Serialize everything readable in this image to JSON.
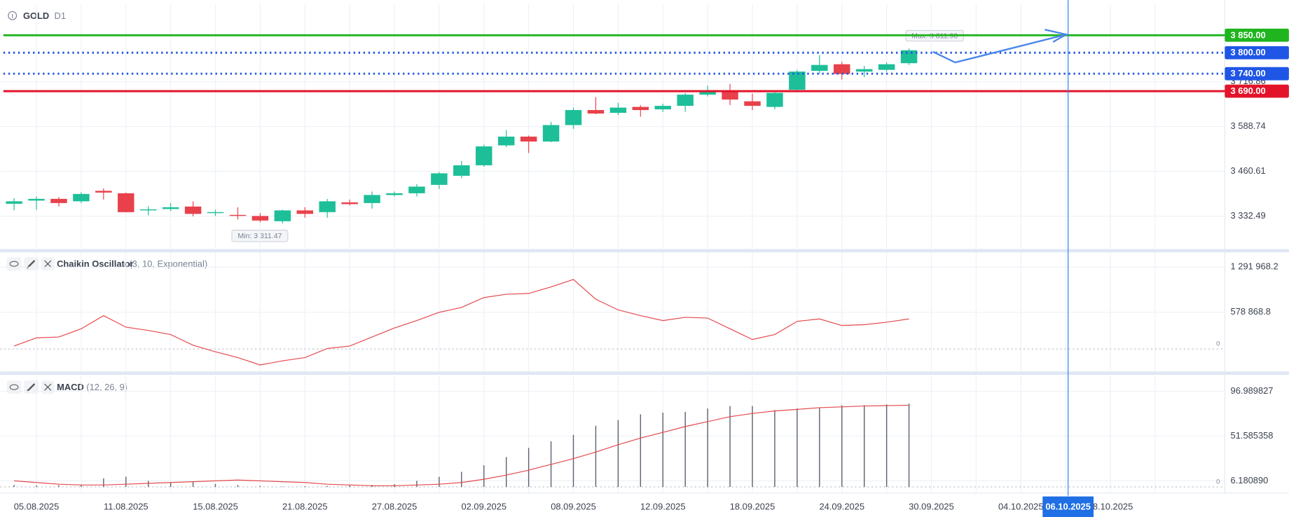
{
  "symbol": "GOLD",
  "timeframe": "D1",
  "chart_data": [
    {
      "type": "candlestick",
      "categories": [
        null,
        "05.08.2025",
        null,
        null,
        null,
        "11.08.2025",
        null,
        null,
        null,
        "15.08.2025",
        null,
        null,
        null,
        "21.08.2025",
        null,
        null,
        null,
        "27.08.2025",
        null,
        null,
        null,
        "02.09.2025",
        null,
        null,
        null,
        "08.09.2025",
        null,
        null,
        null,
        "12.09.2025",
        null,
        null,
        null,
        "18.09.2025",
        null,
        null,
        null,
        "24.09.2025",
        null,
        null,
        null,
        "30.09.2025",
        null,
        null,
        null,
        "04.10.2025",
        null,
        "06.10.2025",
        null,
        "08.10.2025",
        null,
        null,
        null
      ],
      "highlight_category": "06.10.2025",
      "open": [
        3368,
        3377,
        3382,
        3375,
        3405,
        3398,
        3349,
        3353,
        3360,
        3342,
        3336,
        3333,
        3318,
        3349,
        3344,
        3372,
        3370,
        3393,
        3398,
        3422,
        3448,
        3478,
        3535,
        3560,
        3546,
        3593,
        3636,
        3628,
        3645,
        3638,
        3648,
        3680,
        3689,
        3661,
        3645,
        3694,
        3748,
        3767,
        3746,
        3751,
        3770,
        null,
        null,
        null,
        null,
        null,
        null,
        null,
        null,
        null,
        null,
        null,
        null
      ],
      "high": [
        3384,
        3389,
        3387,
        3401,
        3412,
        3400,
        3361,
        3370,
        3375,
        3351,
        3358,
        3341,
        3351,
        3358,
        3382,
        3380,
        3403,
        3403,
        3424,
        3459,
        3490,
        3537,
        3579,
        3563,
        3602,
        3643,
        3673,
        3657,
        3650,
        3654,
        3685,
        3706,
        3711,
        3683,
        3692,
        3751,
        3793,
        3774,
        3762,
        3772,
        3811.9,
        null,
        null,
        null,
        null,
        null,
        null,
        null,
        null,
        null,
        null,
        null,
        null
      ],
      "low": [
        3349,
        3351,
        3360,
        3370,
        3380,
        3343,
        3335,
        3347,
        3332,
        3333,
        3323,
        3315,
        3311.47,
        3328,
        3328,
        3363,
        3354,
        3389,
        3389,
        3410,
        3441,
        3474,
        3530,
        3513,
        3544,
        3582,
        3624,
        3622,
        3617,
        3631,
        3631,
        3675,
        3650,
        3636,
        3638,
        3690,
        3739,
        3723,
        3730,
        3746,
        3765,
        null,
        null,
        null,
        null,
        null,
        null,
        null,
        null,
        null,
        null,
        null,
        null
      ],
      "close": [
        3375,
        3382,
        3370,
        3396,
        3400,
        3344,
        3352,
        3358,
        3339,
        3344,
        3334,
        3320,
        3349,
        3339,
        3375,
        3367,
        3393,
        3398,
        3417,
        3455,
        3478,
        3532,
        3560,
        3546,
        3593,
        3636,
        3626,
        3643,
        3636,
        3648,
        3680,
        3689,
        3666,
        3648,
        3685,
        3746,
        3765,
        3739,
        3753,
        3767,
        3807,
        null,
        null,
        null,
        null,
        null,
        null,
        null,
        null,
        null,
        null,
        null,
        null
      ],
      "up_color": "#1dbf98",
      "down_color": "#e8414b",
      "ylim": [
        3240.8,
        3939.0
      ],
      "yticks": [
        {
          "value": 3332.49,
          "label": "3 332.49"
        },
        {
          "value": 3460.61,
          "label": "3 460.61"
        },
        {
          "value": 3588.74,
          "label": "3 588.74"
        },
        {
          "value": 3716.86,
          "label": "3 716.86"
        }
      ],
      "grid": true,
      "levels": [
        {
          "value": 3850,
          "label": "3 850.00",
          "color": "#1fb51f",
          "dotted": false
        },
        {
          "value": 3800,
          "label": "3 800.00",
          "color": "#1f56e6",
          "dotted": true
        },
        {
          "value": 3740,
          "label": "3 740.00",
          "color": "#1f56e6",
          "dotted": true
        },
        {
          "value": 3690,
          "label": "3 690.00",
          "color": "#e3142a",
          "dotted": false
        }
      ],
      "annotations": [
        "Max: 3 811.90",
        "Min: 3 311.47"
      ]
    },
    {
      "type": "line",
      "title": "Chaikin Oscillator",
      "subtitle": "(3, 10, Exponential)",
      "color": "#e5484d",
      "values": [
        46700,
        176300,
        189300,
        318900,
        526400,
        344900,
        293000,
        228200,
        59700,
        -44100,
        -134800,
        -251500,
        -186700,
        -134800,
        7800,
        46700,
        189300,
        331900,
        448600,
        578200,
        656000,
        811600,
        863400,
        876400,
        980100,
        1096800,
        785700,
        617100,
        526400,
        448600,
        500500,
        487400,
        318900,
        150400,
        228200,
        435600,
        474500,
        370800,
        383700,
        422700,
        474500,
        null,
        null,
        null,
        null,
        null,
        null,
        null,
        null,
        null,
        null,
        null,
        null
      ],
      "ylim": [
        -355000,
        1525000
      ],
      "yticks": [
        0,
        {
          "value": 578868.8,
          "label": "578 868.8"
        },
        {
          "value": 1291968.2,
          "label": "1 291 968.2"
        }
      ],
      "grid": true
    },
    {
      "type": "macd",
      "title": "MACD",
      "subtitle": "(12, 26, 9)",
      "series": [
        {
          "type": "bar",
          "color": "#5b6270",
          "values": [
            2.0,
            1.5,
            1.7,
            2.5,
            8.7,
            10.3,
            6.2,
            4.5,
            5.3,
            3.0,
            2.0,
            1.0,
            0.5,
            0.8,
            1.0,
            1.5,
            2.0,
            2.8,
            6.2,
            10.3,
            15.3,
            22.0,
            30.3,
            39.5,
            46.2,
            52.8,
            62.0,
            67.8,
            73.6,
            75.3,
            76.1,
            79.5,
            82.0,
            82.0,
            77.8,
            79.5,
            80.3,
            82.8,
            82.8,
            83.6,
            84.5,
            null,
            null,
            null,
            null,
            null,
            null,
            null,
            null,
            null,
            null,
            null,
            null
          ]
        },
        {
          "type": "line",
          "color": "#e5484d",
          "values": [
            6.2,
            4.5,
            2.8,
            2.0,
            2.0,
            2.8,
            3.7,
            4.5,
            5.3,
            6.2,
            7.0,
            6.2,
            5.3,
            4.5,
            2.8,
            2.0,
            1.2,
            1.2,
            2.0,
            2.8,
            4.5,
            7.8,
            12.0,
            17.0,
            22.8,
            28.7,
            35.3,
            42.8,
            49.5,
            55.3,
            61.2,
            66.2,
            71.2,
            74.5,
            77.0,
            78.6,
            80.3,
            81.1,
            82.0,
            82.4,
            82.8,
            null,
            null,
            null,
            null,
            null,
            null,
            null,
            null,
            null,
            null,
            null,
            null
          ]
        }
      ],
      "ylim": [
        -6.3,
        112.8
      ],
      "yticks": [
        0,
        {
          "value": 6.18089,
          "label": "6.180890"
        },
        {
          "value": 51.585358,
          "label": "51.585358"
        },
        {
          "value": 96.989827,
          "label": "96.989827"
        }
      ],
      "grid": true
    }
  ]
}
